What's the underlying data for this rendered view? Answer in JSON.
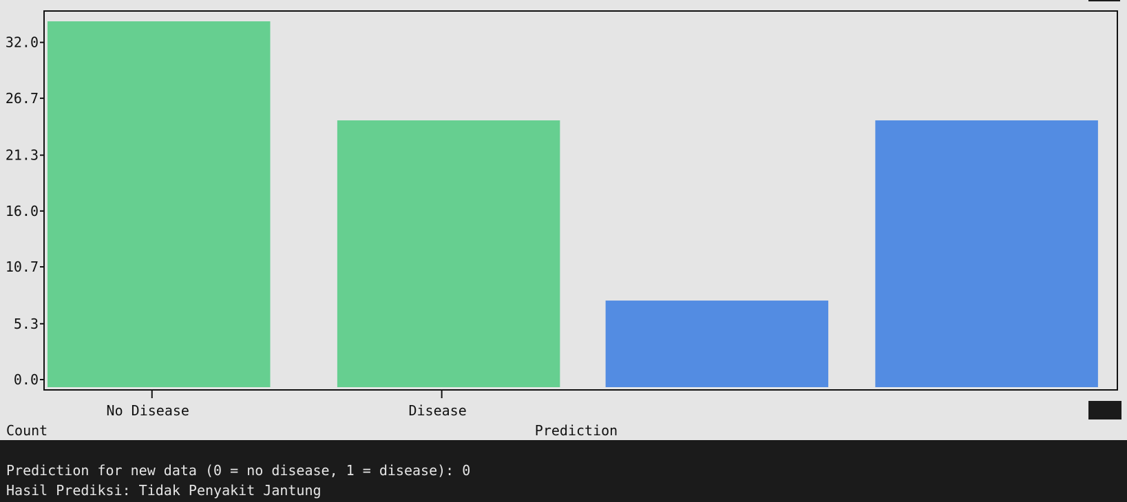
{
  "chart_data": {
    "type": "bar",
    "categories": [
      "No Disease",
      "Disease",
      "",
      ""
    ],
    "values": [
      34,
      24.6,
      7.5,
      24.6
    ],
    "bar_colors": [
      "#66cf90",
      "#66cf90",
      "#538ce2",
      "#538ce2"
    ],
    "yticks": [
      "0.0",
      "5.3",
      "10.7",
      "16.0",
      "21.3",
      "26.7",
      "32.0"
    ],
    "ylim": [
      0,
      34
    ],
    "xlabel": "Prediction",
    "ylabel": "Count",
    "grid": false
  },
  "console": {
    "line1": "Prediction for new data (0 = no disease, 1 = disease): 0",
    "line2": "Hasil Prediksi: Tidak Penyakit Jantung"
  }
}
